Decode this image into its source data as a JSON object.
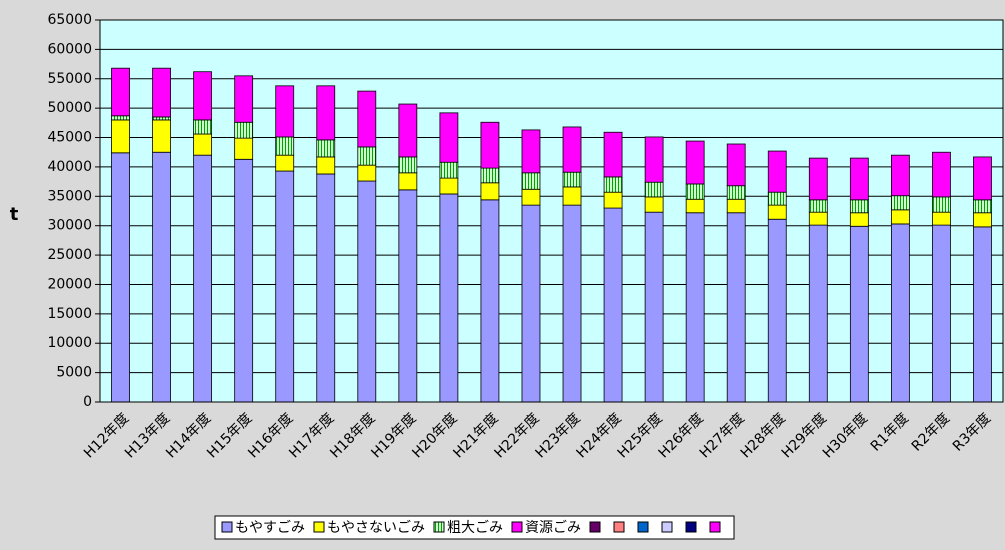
{
  "chart_data": {
    "type": "stacked_bar",
    "y_label": "t",
    "categories": [
      "H12年度",
      "H13年度",
      "H14年度",
      "H15年度",
      "H16年度",
      "H17年度",
      "H18年度",
      "H19年度",
      "H20年度",
      "H21年度",
      "H22年度",
      "H23年度",
      "H24年度",
      "H25年度",
      "H26年度",
      "H27年度",
      "H28年度",
      "H29年度",
      "H30年度",
      "R1年度",
      "R2年度",
      "R3年度"
    ],
    "series": [
      {
        "name": "もやすごみ",
        "color": "#9999ff",
        "values": [
          42400,
          42500,
          42000,
          41300,
          39300,
          38800,
          37600,
          36100,
          35400,
          34400,
          33500,
          33500,
          33000,
          32300,
          32200,
          32200,
          31100,
          30100,
          29900,
          30300,
          30100,
          29800
        ]
      },
      {
        "name": "もやさないごみ",
        "color": "#ffff00",
        "values": [
          5600,
          5500,
          3600,
          3600,
          2700,
          2900,
          2700,
          2900,
          2700,
          2900,
          2700,
          3100,
          2700,
          2600,
          2300,
          2300,
          2400,
          2200,
          2300,
          2400,
          2200,
          2400
        ]
      },
      {
        "name": "粗大ごみ",
        "color": "#ccffcc",
        "values": [
          700,
          500,
          2400,
          2700,
          3100,
          2900,
          3100,
          2700,
          2700,
          2500,
          2800,
          2500,
          2600,
          2500,
          2600,
          2300,
          2200,
          2100,
          2200,
          2400,
          2600,
          2200
        ]
      },
      {
        "name": "資源ごみ",
        "color": "#ff00ff",
        "values": [
          8100,
          8300,
          8200,
          7900,
          8700,
          9200,
          9500,
          9000,
          8400,
          7800,
          7300,
          7700,
          7600,
          7700,
          7300,
          7100,
          7000,
          7100,
          7100,
          6900,
          7600,
          7300
        ]
      }
    ],
    "legend_extra_colors": [
      "#660066",
      "#ff8080",
      "#0066cc",
      "#ccccff",
      "#000080",
      "#ff00ff"
    ],
    "ylim": [
      0,
      65000
    ],
    "yticks": [
      0,
      5000,
      10000,
      15000,
      20000,
      25000,
      30000,
      35000,
      40000,
      45000,
      50000,
      55000,
      60000,
      65000
    ],
    "grid": true,
    "plot_background": "#ccffff"
  }
}
